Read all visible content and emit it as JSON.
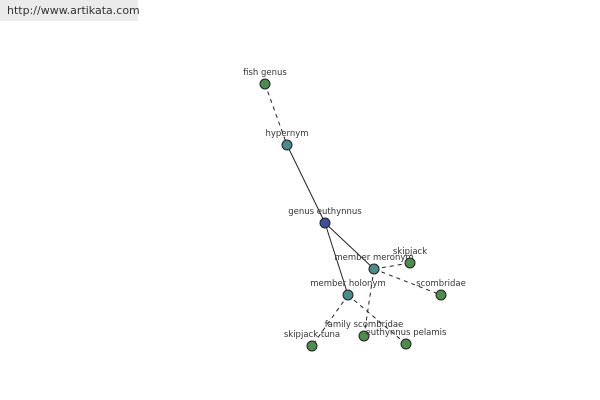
{
  "header": {
    "url": "http://www.artikata.com"
  },
  "nodes": [
    {
      "label": "fish genus"
    },
    {
      "label": "hypernym"
    },
    {
      "label": "genus euthynnus"
    },
    {
      "label": "member meronym"
    },
    {
      "label": "skipjack"
    },
    {
      "label": "scombridae"
    },
    {
      "label": "member holonym"
    },
    {
      "label": "skipjack tuna"
    },
    {
      "label": "family scombridae"
    },
    {
      "label": "euthynnus pelamis"
    }
  ]
}
